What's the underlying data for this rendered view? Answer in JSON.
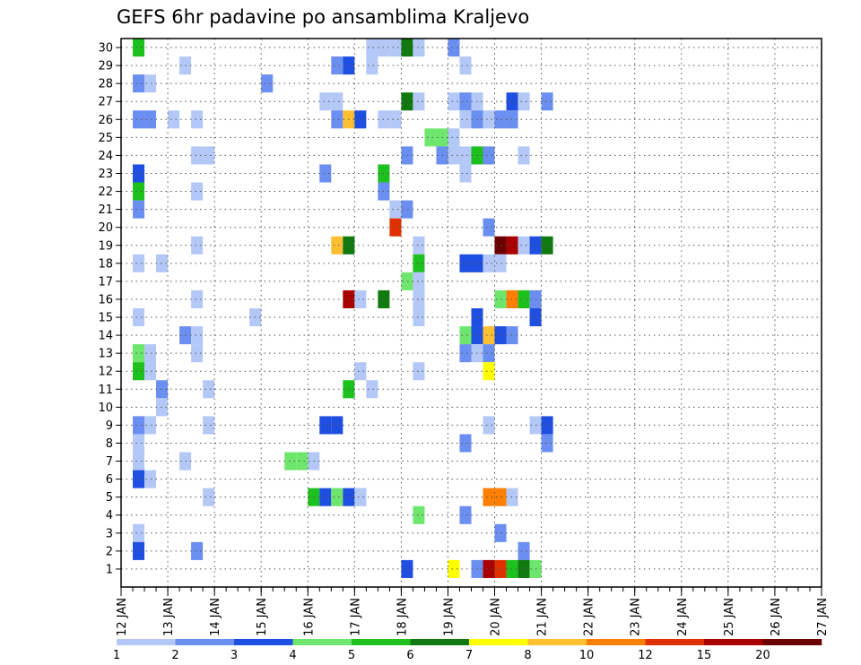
{
  "chart_data": {
    "type": "heatmap",
    "title": "GEFS 6hr padavine po ansamblima Kraljevo",
    "xlabel": "",
    "ylabel": "",
    "x_tick_labels": [
      "12 JAN",
      "13 JAN",
      "14 JAN",
      "15 JAN",
      "16 JAN",
      "17 JAN",
      "18 JAN",
      "19 JAN",
      "20 JAN",
      "21 JAN",
      "22 JAN",
      "23 JAN",
      "24 JAN",
      "25 JAN",
      "26 JAN",
      "27 JAN"
    ],
    "y_tick_labels": [
      "1",
      "2",
      "3",
      "4",
      "5",
      "6",
      "7",
      "8",
      "9",
      "10",
      "11",
      "12",
      "13",
      "14",
      "15",
      "16",
      "17",
      "18",
      "19",
      "20",
      "21",
      "22",
      "23",
      "24",
      "25",
      "26",
      "27",
      "28",
      "29",
      "30"
    ],
    "x_range_days": [
      0,
      15
    ],
    "y_range_members": [
      0,
      30
    ],
    "time_step_hours": 6,
    "grid": true,
    "legend_position": "bottom",
    "legend": {
      "boundaries": [
        "1",
        "2",
        "3",
        "4",
        "5",
        "6",
        "7",
        "8",
        "10",
        "12",
        "15",
        "20"
      ],
      "colors": [
        "#b4c8f7",
        "#6b8ff0",
        "#1f4fe0",
        "#6ee66e",
        "#1ec01e",
        "#107a10",
        "#ffff00",
        "#ffbf33",
        "#ff7f00",
        "#e03000",
        "#a80000",
        "#6a0000"
      ]
    },
    "color_scale": [
      "#b4c8f7",
      "#6b8ff0",
      "#1f4fe0",
      "#6ee66e",
      "#1ec01e",
      "#107a10",
      "#ffff00",
      "#ffbf33",
      "#ff7f00",
      "#e03000",
      "#a80000",
      "#6a0000"
    ],
    "cells_format": "[time_index_in_6h_steps_from_12_JAN, ensemble_member, class_index_0_to_11]",
    "cells": [
      [
        1,
        30,
        4
      ],
      [
        21,
        30,
        0
      ],
      [
        22,
        30,
        0
      ],
      [
        23,
        30,
        0
      ],
      [
        24,
        30,
        5
      ],
      [
        25,
        30,
        0
      ],
      [
        28,
        30,
        1
      ],
      [
        5,
        29,
        0
      ],
      [
        18,
        29,
        1
      ],
      [
        19,
        29,
        2
      ],
      [
        21,
        29,
        0
      ],
      [
        29,
        29,
        0
      ],
      [
        1,
        28,
        1
      ],
      [
        2,
        28,
        0
      ],
      [
        12,
        28,
        1
      ],
      [
        17,
        27,
        0
      ],
      [
        18,
        27,
        0
      ],
      [
        24,
        27,
        5
      ],
      [
        25,
        27,
        0
      ],
      [
        28,
        27,
        0
      ],
      [
        29,
        27,
        1
      ],
      [
        30,
        27,
        0
      ],
      [
        33,
        27,
        2
      ],
      [
        34,
        27,
        0
      ],
      [
        36,
        27,
        1
      ],
      [
        1,
        26,
        1
      ],
      [
        2,
        26,
        1
      ],
      [
        4,
        26,
        0
      ],
      [
        6,
        26,
        0
      ],
      [
        18,
        26,
        1
      ],
      [
        19,
        26,
        7
      ],
      [
        20,
        26,
        2
      ],
      [
        22,
        26,
        0
      ],
      [
        23,
        26,
        0
      ],
      [
        29,
        26,
        0
      ],
      [
        30,
        26,
        1
      ],
      [
        31,
        26,
        0
      ],
      [
        32,
        26,
        1
      ],
      [
        33,
        26,
        1
      ],
      [
        26,
        25,
        3
      ],
      [
        27,
        25,
        3
      ],
      [
        28,
        25,
        0
      ],
      [
        6,
        24,
        0
      ],
      [
        7,
        24,
        0
      ],
      [
        24,
        24,
        1
      ],
      [
        27,
        24,
        1
      ],
      [
        28,
        24,
        0
      ],
      [
        29,
        24,
        0
      ],
      [
        30,
        24,
        4
      ],
      [
        31,
        24,
        1
      ],
      [
        34,
        24,
        0
      ],
      [
        1,
        23,
        2
      ],
      [
        17,
        23,
        1
      ],
      [
        22,
        23,
        4
      ],
      [
        29,
        23,
        0
      ],
      [
        1,
        22,
        4
      ],
      [
        6,
        22,
        0
      ],
      [
        22,
        22,
        1
      ],
      [
        1,
        21,
        1
      ],
      [
        23,
        21,
        0
      ],
      [
        24,
        21,
        1
      ],
      [
        23,
        20,
        9
      ],
      [
        31,
        20,
        1
      ],
      [
        6,
        19,
        0
      ],
      [
        18,
        19,
        7
      ],
      [
        19,
        19,
        5
      ],
      [
        25,
        19,
        0
      ],
      [
        32,
        19,
        11
      ],
      [
        33,
        19,
        10
      ],
      [
        34,
        19,
        0
      ],
      [
        35,
        19,
        2
      ],
      [
        36,
        19,
        5
      ],
      [
        1,
        18,
        0
      ],
      [
        3,
        18,
        0
      ],
      [
        25,
        18,
        4
      ],
      [
        29,
        18,
        2
      ],
      [
        30,
        18,
        2
      ],
      [
        31,
        18,
        0
      ],
      [
        32,
        18,
        0
      ],
      [
        24,
        17,
        3
      ],
      [
        25,
        17,
        0
      ],
      [
        6,
        16,
        0
      ],
      [
        19,
        16,
        10
      ],
      [
        20,
        16,
        0
      ],
      [
        22,
        16,
        5
      ],
      [
        25,
        16,
        0
      ],
      [
        32,
        16,
        3
      ],
      [
        33,
        16,
        8
      ],
      [
        34,
        16,
        4
      ],
      [
        35,
        16,
        1
      ],
      [
        1,
        15,
        0
      ],
      [
        11,
        15,
        0
      ],
      [
        25,
        15,
        0
      ],
      [
        30,
        15,
        2
      ],
      [
        35,
        15,
        2
      ],
      [
        5,
        14,
        1
      ],
      [
        6,
        14,
        0
      ],
      [
        29,
        14,
        3
      ],
      [
        30,
        14,
        2
      ],
      [
        31,
        14,
        7
      ],
      [
        32,
        14,
        2
      ],
      [
        33,
        14,
        1
      ],
      [
        1,
        13,
        3
      ],
      [
        2,
        13,
        0
      ],
      [
        6,
        13,
        0
      ],
      [
        29,
        13,
        1
      ],
      [
        30,
        13,
        0
      ],
      [
        31,
        13,
        1
      ],
      [
        1,
        12,
        4
      ],
      [
        2,
        12,
        0
      ],
      [
        20,
        12,
        0
      ],
      [
        25,
        12,
        0
      ],
      [
        31,
        12,
        6
      ],
      [
        3,
        11,
        1
      ],
      [
        7,
        11,
        0
      ],
      [
        19,
        11,
        4
      ],
      [
        21,
        11,
        0
      ],
      [
        3,
        10,
        0
      ],
      [
        1,
        9,
        1
      ],
      [
        2,
        9,
        0
      ],
      [
        7,
        9,
        0
      ],
      [
        17,
        9,
        2
      ],
      [
        18,
        9,
        2
      ],
      [
        31,
        9,
        0
      ],
      [
        35,
        9,
        0
      ],
      [
        36,
        9,
        2
      ],
      [
        1,
        8,
        0
      ],
      [
        29,
        8,
        1
      ],
      [
        36,
        8,
        1
      ],
      [
        1,
        7,
        0
      ],
      [
        5,
        7,
        0
      ],
      [
        14,
        7,
        3
      ],
      [
        15,
        7,
        3
      ],
      [
        16,
        7,
        0
      ],
      [
        1,
        6,
        2
      ],
      [
        2,
        6,
        0
      ],
      [
        16,
        5,
        4
      ],
      [
        17,
        5,
        2
      ],
      [
        18,
        5,
        3
      ],
      [
        19,
        5,
        2
      ],
      [
        20,
        5,
        0
      ],
      [
        7,
        5,
        0
      ],
      [
        20,
        5,
        0
      ],
      [
        31,
        5,
        8
      ],
      [
        32,
        5,
        8
      ],
      [
        33,
        5,
        0
      ],
      [
        25,
        4,
        3
      ],
      [
        29,
        4,
        1
      ],
      [
        1,
        3,
        0
      ],
      [
        32,
        3,
        1
      ],
      [
        1,
        2,
        2
      ],
      [
        6,
        2,
        1
      ],
      [
        34,
        2,
        1
      ],
      [
        24,
        1,
        2
      ],
      [
        28,
        1,
        6
      ],
      [
        30,
        1,
        1
      ],
      [
        31,
        1,
        10
      ],
      [
        32,
        1,
        9
      ],
      [
        33,
        1,
        4
      ],
      [
        34,
        1,
        5
      ],
      [
        35,
        1,
        3
      ]
    ]
  }
}
